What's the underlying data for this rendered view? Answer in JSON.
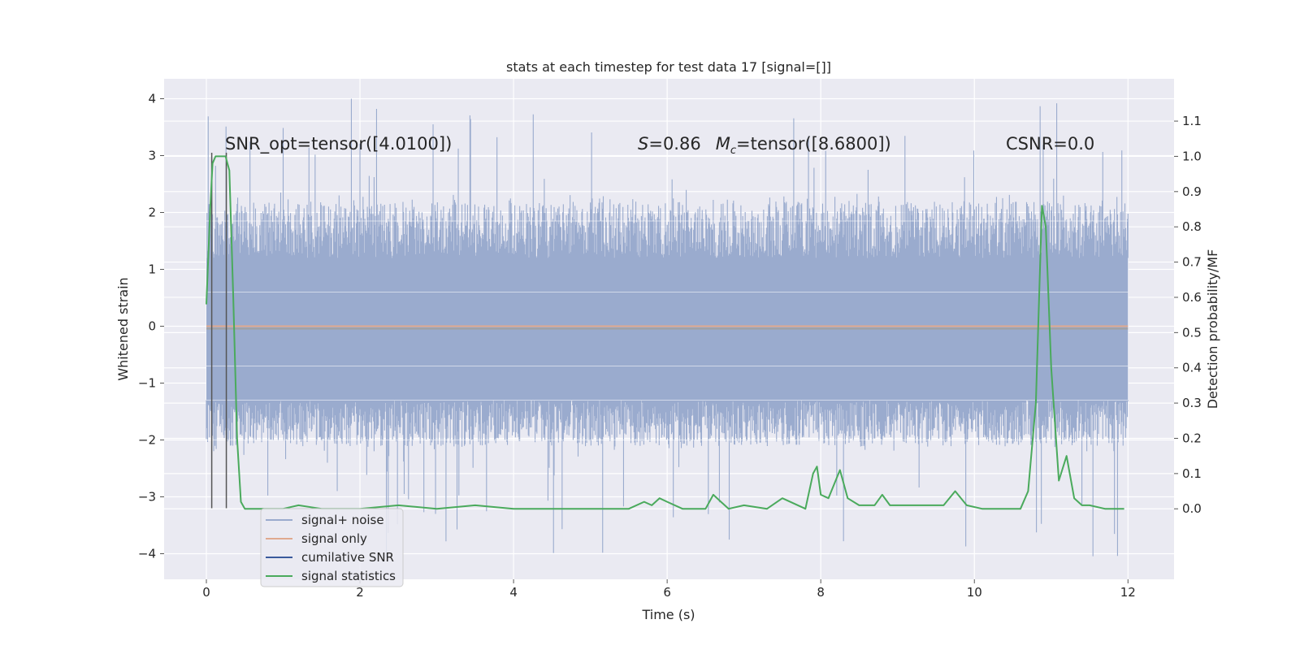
{
  "chart_data": {
    "type": "line",
    "title": "stats at each timestep for test data 17 [signal=[]]",
    "xlabel": "Time (s)",
    "ylabel": "Whitened strain",
    "ylabel_right": "Detection probability/MF",
    "xlim": [
      -0.55,
      12.6
    ],
    "ylim": [
      -4.45,
      4.35
    ],
    "ylim_right": [
      -0.2,
      1.22
    ],
    "x_ticks": [
      0,
      2,
      4,
      6,
      8,
      10,
      12
    ],
    "y_ticks": [
      -4,
      -3,
      -2,
      -1,
      0,
      1,
      2,
      3,
      4
    ],
    "y_right_ticks": [
      0.0,
      0.1,
      0.2,
      0.3,
      0.4,
      0.5,
      0.6,
      0.7,
      0.8,
      0.9,
      1.0,
      1.1
    ],
    "x_tick_labels": [
      "0",
      "2",
      "4",
      "6",
      "8",
      "10",
      "12"
    ],
    "y_tick_labels": [
      "−4",
      "−3",
      "−2",
      "−1",
      "0",
      "1",
      "2",
      "3",
      "4"
    ],
    "y_right_tick_labels": [
      "0.0",
      "0.1",
      "0.2",
      "0.3",
      "0.4",
      "0.5",
      "0.6",
      "0.7",
      "0.8",
      "0.9",
      "1.0",
      "1.1"
    ],
    "grid": true,
    "legend_position": "bottom-left",
    "annotations": {
      "snr_opt": "SNR_opt=tensor([4.0100])",
      "s_value": "=0.86",
      "s_symbol": "S",
      "mc_symbol": "M",
      "mc_subscript": "c",
      "mc_value": "=tensor([8.6800])",
      "csnr": "CSNR=0.0"
    },
    "series": [
      {
        "name": "signal+ noise",
        "color": "#9aabce",
        "kind": "noise",
        "t_range": [
          0,
          12
        ],
        "core_band": [
          -1.3,
          1.2
        ],
        "outer_band": [
          -2.2,
          2.3
        ],
        "extreme_range": [
          -4.1,
          4.0
        ]
      },
      {
        "name": "signal only",
        "color": "#e0a98f",
        "kind": "line",
        "x": [
          0,
          12
        ],
        "y": [
          0,
          0
        ]
      },
      {
        "name": "cumilative SNR",
        "color": "#555555",
        "kind": "vlines",
        "x": [
          0.07,
          0.26
        ],
        "y_bottom": -3.2,
        "y_top": 3.05
      },
      {
        "name": "signal statistics",
        "color": "#4aaa5c",
        "kind": "line",
        "axis": "right",
        "x": [
          0,
          0.05,
          0.08,
          0.12,
          0.18,
          0.25,
          0.3,
          0.35,
          0.4,
          0.45,
          0.5,
          0.6,
          1.0,
          1.2,
          1.5,
          2.0,
          2.5,
          3.0,
          3.5,
          4.0,
          4.5,
          5.0,
          5.5,
          5.7,
          5.8,
          5.9,
          6.0,
          6.2,
          6.5,
          6.6,
          6.7,
          6.8,
          7.0,
          7.3,
          7.5,
          7.8,
          7.9,
          7.95,
          8.0,
          8.1,
          8.25,
          8.35,
          8.5,
          8.7,
          8.8,
          8.9,
          9.0,
          9.3,
          9.6,
          9.75,
          9.9,
          10.1,
          10.5,
          10.6,
          10.7,
          10.8,
          10.88,
          10.93,
          11.0,
          11.1,
          11.2,
          11.3,
          11.4,
          11.5,
          11.7,
          11.9,
          11.95
        ],
        "y": [
          0.58,
          0.85,
          0.98,
          1.0,
          1.0,
          1.0,
          0.96,
          0.6,
          0.2,
          0.02,
          0.0,
          0.0,
          0.0,
          0.01,
          0.0,
          0.0,
          0.01,
          0.0,
          0.01,
          0.0,
          0.0,
          0.0,
          0.0,
          0.02,
          0.01,
          0.03,
          0.02,
          0.0,
          0.0,
          0.04,
          0.02,
          0.0,
          0.01,
          0.0,
          0.03,
          0.0,
          0.1,
          0.12,
          0.04,
          0.03,
          0.11,
          0.03,
          0.01,
          0.01,
          0.04,
          0.01,
          0.01,
          0.01,
          0.01,
          0.05,
          0.01,
          0.0,
          0.0,
          0.0,
          0.05,
          0.3,
          0.86,
          0.8,
          0.4,
          0.08,
          0.15,
          0.03,
          0.01,
          0.01,
          0.0,
          0.0,
          0.0
        ]
      }
    ]
  }
}
